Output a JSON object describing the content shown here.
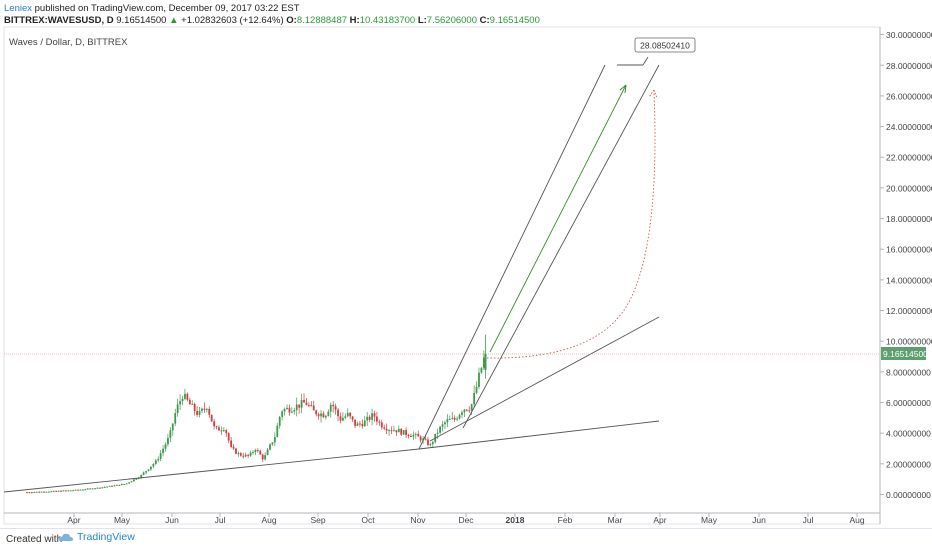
{
  "header": {
    "author": "Leniex",
    "published_text": "published on TradingView.com, December 09, 2017 03:22 EST",
    "symbol": "BITTREX:WAVESUSD, D",
    "last_price": "9.16514500",
    "change_arrow": "▲",
    "change_text": "+1.02832603 (+12.64%)",
    "open_label": "O:",
    "open_value": "8.12888487",
    "high_label": "H:",
    "high_value": "10.43183700",
    "low_label": "L:",
    "low_value": "7.56206000",
    "close_label": "C:",
    "close_value": "9.16514500"
  },
  "chart_data": {
    "type": "candlestick",
    "title": "Waves / Dollar, D, BITTREX",
    "ylim": [
      -1,
      30
    ],
    "y_ticks": [
      "0.00000000",
      "2.00000000",
      "4.00000000",
      "6.00000000",
      "8.00000000",
      "10.00000000",
      "12.00000000",
      "14.00000000",
      "16.00000000",
      "18.00000000",
      "20.00000000",
      "22.00000000",
      "24.00000000",
      "26.00000000",
      "28.00000000",
      "30.00000000"
    ],
    "x_ticks": [
      "Apr",
      "May",
      "Jun",
      "Jul",
      "Aug",
      "Sep",
      "Oct",
      "Nov",
      "Dec",
      "2018",
      "Feb",
      "Mar",
      "Apr",
      "May",
      "Jun",
      "Jul",
      "Aug"
    ],
    "price_series": {
      "name": "WAVESUSD",
      "x": [
        "2017-03-01",
        "2017-03-15",
        "2017-04-01",
        "2017-04-15",
        "2017-05-01",
        "2017-05-10",
        "2017-05-20",
        "2017-05-28",
        "2017-06-01",
        "2017-06-05",
        "2017-06-10",
        "2017-06-15",
        "2017-06-20",
        "2017-06-25",
        "2017-07-01",
        "2017-07-05",
        "2017-07-10",
        "2017-07-16",
        "2017-07-20",
        "2017-07-25",
        "2017-08-01",
        "2017-08-05",
        "2017-08-10",
        "2017-08-15",
        "2017-08-20",
        "2017-08-25",
        "2017-09-01",
        "2017-09-05",
        "2017-09-10",
        "2017-09-15",
        "2017-09-20",
        "2017-09-25",
        "2017-10-01",
        "2017-10-05",
        "2017-10-10",
        "2017-10-15",
        "2017-10-20",
        "2017-10-25",
        "2017-10-31",
        "2017-11-05",
        "2017-11-10",
        "2017-11-15",
        "2017-11-20",
        "2017-11-25",
        "2017-11-30",
        "2017-12-03",
        "2017-12-06",
        "2017-12-09"
      ],
      "close": [
        0.15,
        0.2,
        0.3,
        0.45,
        0.7,
        1.2,
        2.2,
        3.8,
        5.5,
        6.5,
        5.8,
        5.2,
        5.8,
        4.2,
        4.4,
        3.0,
        2.6,
        2.5,
        3.0,
        2.3,
        3.8,
        5.5,
        5.6,
        5.8,
        6.0,
        5.4,
        5.2,
        6.0,
        4.9,
        5.2,
        4.5,
        4.7,
        5.2,
        4.6,
        4.3,
        4.2,
        4.0,
        3.9,
        3.6,
        3.2,
        4.2,
        4.8,
        4.9,
        5.6,
        5.7,
        6.8,
        8.1,
        9.17
      ]
    },
    "annotations": [
      {
        "type": "price_label",
        "value": "28.08502410"
      },
      {
        "type": "last_price",
        "value": "9.16514500"
      }
    ],
    "colors": {
      "up": "#3c9a4a",
      "down": "#cf3d3d",
      "trendline": "#555555",
      "green_arrow": "#3a8c2f",
      "red_dotted": "#d85050",
      "last_price_bg": "#5f9e6e"
    }
  },
  "footer": {
    "created_with": "Created with",
    "brand": "TradingView"
  }
}
